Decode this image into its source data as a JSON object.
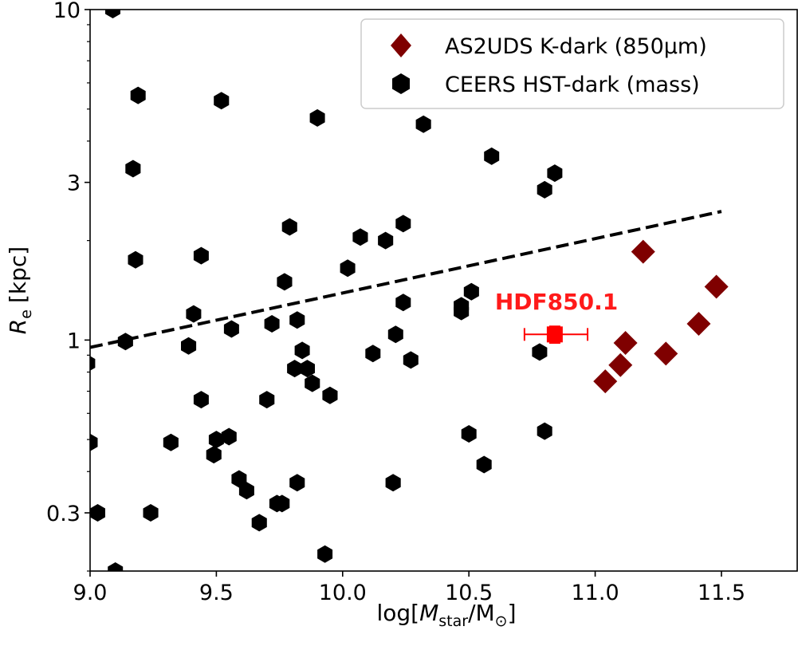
{
  "chart_data": {
    "type": "scatter",
    "title": "",
    "xlabel_prefix": "log[",
    "xlabel_var": "M",
    "xlabel_sub": "star",
    "xlabel_unit": "/M",
    "xlabel_sun": "⊙",
    "xlabel_suffix": "]",
    "ylabel_var": "R",
    "ylabel_sub": "e",
    "ylabel_unit": "[kpc]",
    "xlim": [
      9.0,
      11.8
    ],
    "ylim": [
      0.2,
      10
    ],
    "yscale": "log",
    "x_ticks": [
      {
        "value": 9.0,
        "label": "9.0"
      },
      {
        "value": 9.5,
        "label": "9.5"
      },
      {
        "value": 10.0,
        "label": "10.0"
      },
      {
        "value": 10.5,
        "label": "10.5"
      },
      {
        "value": 11.0,
        "label": "11.0"
      },
      {
        "value": 11.5,
        "label": "11.5"
      }
    ],
    "y_ticks": [
      {
        "value": 0.3,
        "label": "0.3"
      },
      {
        "value": 1,
        "label": "1"
      },
      {
        "value": 3,
        "label": "3"
      },
      {
        "value": 10,
        "label": "10"
      }
    ],
    "legend_position": "top-right",
    "series": [
      {
        "name": "CEERS HST-dark (mass)",
        "marker": "hexagon",
        "color": "#000000",
        "points": [
          [
            9.09,
            10.0
          ],
          [
            9.19,
            5.5
          ],
          [
            9.52,
            5.3
          ],
          [
            9.9,
            4.7
          ],
          [
            10.32,
            4.5
          ],
          [
            9.17,
            3.3
          ],
          [
            10.59,
            3.6
          ],
          [
            10.84,
            3.2
          ],
          [
            10.8,
            2.85
          ],
          [
            10.24,
            2.25
          ],
          [
            9.79,
            2.2
          ],
          [
            10.07,
            2.05
          ],
          [
            10.17,
            2.0
          ],
          [
            9.18,
            1.75
          ],
          [
            9.44,
            1.8
          ],
          [
            10.02,
            1.65
          ],
          [
            9.77,
            1.5
          ],
          [
            10.51,
            1.4
          ],
          [
            10.24,
            1.3
          ],
          [
            10.47,
            1.27
          ],
          [
            10.47,
            1.22
          ],
          [
            9.41,
            1.2
          ],
          [
            9.82,
            1.15
          ],
          [
            9.72,
            1.12
          ],
          [
            9.56,
            1.08
          ],
          [
            10.21,
            1.04
          ],
          [
            9.14,
            0.99
          ],
          [
            9.39,
            0.96
          ],
          [
            9.84,
            0.93
          ],
          [
            10.12,
            0.91
          ],
          [
            10.78,
            0.92
          ],
          [
            10.27,
            0.87
          ],
          [
            9.81,
            0.82
          ],
          [
            9.86,
            0.82
          ],
          [
            9.88,
            0.74
          ],
          [
            9.95,
            0.68
          ],
          [
            9.7,
            0.66
          ],
          [
            9.44,
            0.66
          ],
          [
            8.99,
            0.85
          ],
          [
            9.0,
            0.49
          ],
          [
            9.5,
            0.5
          ],
          [
            9.55,
            0.51
          ],
          [
            9.32,
            0.49
          ],
          [
            9.49,
            0.45
          ],
          [
            10.5,
            0.52
          ],
          [
            10.8,
            0.53
          ],
          [
            10.56,
            0.42
          ],
          [
            9.59,
            0.38
          ],
          [
            9.82,
            0.37
          ],
          [
            10.2,
            0.37
          ],
          [
            9.62,
            0.35
          ],
          [
            9.74,
            0.32
          ],
          [
            9.76,
            0.32
          ],
          [
            9.03,
            0.3
          ],
          [
            9.24,
            0.3
          ],
          [
            9.67,
            0.28
          ],
          [
            9.93,
            0.225
          ],
          [
            9.1,
            0.2
          ]
        ]
      },
      {
        "name": "AS2UDS K-dark (850μm)",
        "marker": "diamond",
        "color": "#7f0000",
        "points": [
          [
            11.19,
            1.85
          ],
          [
            11.48,
            1.45
          ],
          [
            11.41,
            1.12
          ],
          [
            11.12,
            0.98
          ],
          [
            11.28,
            0.91
          ],
          [
            11.1,
            0.84
          ],
          [
            11.04,
            0.75
          ]
        ]
      },
      {
        "name": "HDF850.1",
        "marker": "square",
        "color": "#ff0000",
        "points": [
          [
            10.84,
            1.04
          ]
        ],
        "xerr": [
          [
            10.72,
            10.97
          ]
        ],
        "yerr": [
          [
            0.98,
            1.1
          ]
        ],
        "label": "HDF850.1"
      }
    ],
    "fit_line": {
      "style": "dashed",
      "color": "#000000",
      "x": [
        9.0,
        11.5
      ],
      "y": [
        0.95,
        2.45
      ]
    }
  }
}
